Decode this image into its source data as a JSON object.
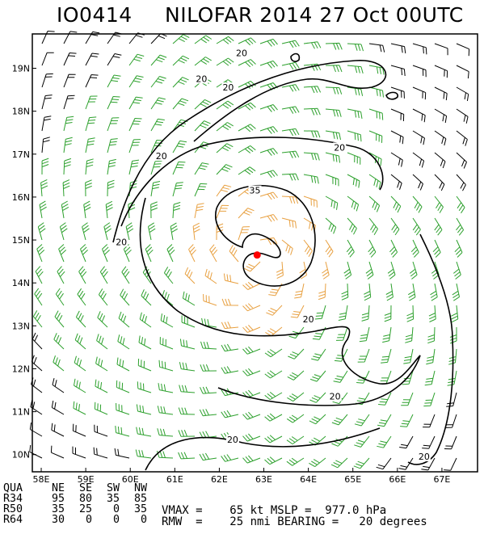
{
  "title": {
    "storm_id": "IO0414",
    "heading": "NILOFAR 2014 27 Oct 00UTC"
  },
  "colors": {
    "barb_low": "#000000",
    "barb_34kt": "#2ca02c",
    "barb_50kt": "#e8a040",
    "contour": "#000000",
    "center": "#ff0000"
  },
  "map": {
    "lon_labels": [
      "58E",
      "59E",
      "60E",
      "61E",
      "62E",
      "63E",
      "64E",
      "65E",
      "66E",
      "67E"
    ],
    "lat_labels": [
      "10N",
      "11N",
      "12N",
      "13N",
      "14N",
      "15N",
      "16N",
      "17N",
      "18N",
      "19N"
    ],
    "lon_range": [
      57.8,
      67.8
    ],
    "lat_range": [
      9.6,
      19.8
    ],
    "center": {
      "lon": 62.85,
      "lat": 14.65
    },
    "contour_labels": [
      {
        "text": "20",
        "lon": 62.5,
        "lat": 19.3
      },
      {
        "text": "20",
        "lon": 61.6,
        "lat": 18.7
      },
      {
        "text": "20",
        "lon": 62.2,
        "lat": 18.5
      },
      {
        "text": "20",
        "lon": 60.7,
        "lat": 16.9
      },
      {
        "text": "20",
        "lon": 64.7,
        "lat": 17.1
      },
      {
        "text": "20",
        "lon": 59.8,
        "lat": 14.9
      },
      {
        "text": "35",
        "lon": 62.8,
        "lat": 16.1
      },
      {
        "text": "20",
        "lon": 64.0,
        "lat": 13.1
      },
      {
        "text": "20",
        "lon": 64.6,
        "lat": 11.3
      },
      {
        "text": "20",
        "lon": 62.3,
        "lat": 10.3
      },
      {
        "text": "20",
        "lon": 66.6,
        "lat": 9.9
      }
    ]
  },
  "radii_table": {
    "headers": [
      "QUA",
      "NE",
      "SE",
      "SW",
      "NW"
    ],
    "rows": [
      {
        "label": "R34",
        "values": [
          "95",
          "80",
          "35",
          "85"
        ]
      },
      {
        "label": "R50",
        "values": [
          "35",
          "25",
          "0",
          "35"
        ]
      },
      {
        "label": "R64",
        "values": [
          "30",
          "0",
          "0",
          "0"
        ]
      }
    ]
  },
  "stats": {
    "line1": "VMAX =    65 kt MSLP =  977.0 hPa",
    "line2": "RMW  =    25 nmi BEARING =   20 degrees"
  }
}
